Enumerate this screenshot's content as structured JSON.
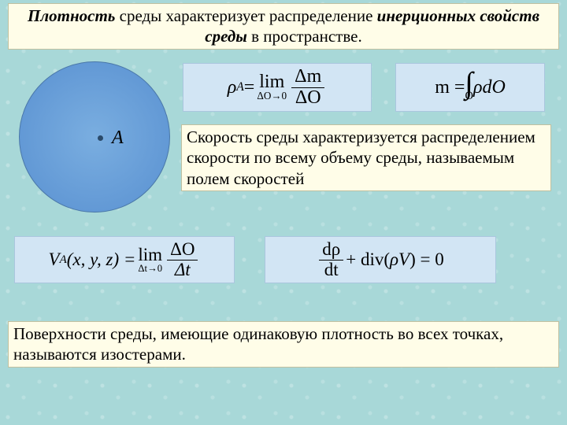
{
  "header": {
    "part1": "Плотность",
    "part2": " среды характеризует распределение ",
    "part3": "инерционных свойств среды",
    "part4": "  в пространстве."
  },
  "circle": {
    "fill_inner": "#7aaee0",
    "fill_outer": "#5f96d4",
    "border": "#4a77a8",
    "point_color": "#2a4a6a",
    "point_label": "A"
  },
  "formula1": {
    "lhs_base": "ρ",
    "lhs_sub": "A",
    "eq": " = ",
    "lim_word": "lim",
    "lim_under": "ΔO→0",
    "num": "Δm",
    "den": "ΔO"
  },
  "formula2": {
    "lhs": "m = ",
    "int_symbol": "∫",
    "int_lower": "O",
    "integrand": "ρdO"
  },
  "desc": {
    "text": "Скорость среды характеризуется распределением скорости по всему объему среды, называемым полем скоростей"
  },
  "formula3": {
    "lhs": "V",
    "lhs_sub": "A",
    "args": "(x, y, z) = ",
    "lim_word": "lim",
    "lim_under": "Δt→0",
    "num": "ΔO",
    "den": "Δt"
  },
  "formula4": {
    "num": "dρ",
    "den": "dt",
    "plus": " + div(",
    "rho_v": "ρV",
    "tail": ") = 0"
  },
  "footer": {
    "text": "Поверхности среды, имеющие одинаковую плотность во всех точках, называются изостерами."
  },
  "colors": {
    "textbox_bg": "#fffde8",
    "textbox_border": "#c0c0a0",
    "formula_bg": "#d2e5f4",
    "formula_border": "#aac6de",
    "page_bg": "#a8d8d8"
  }
}
